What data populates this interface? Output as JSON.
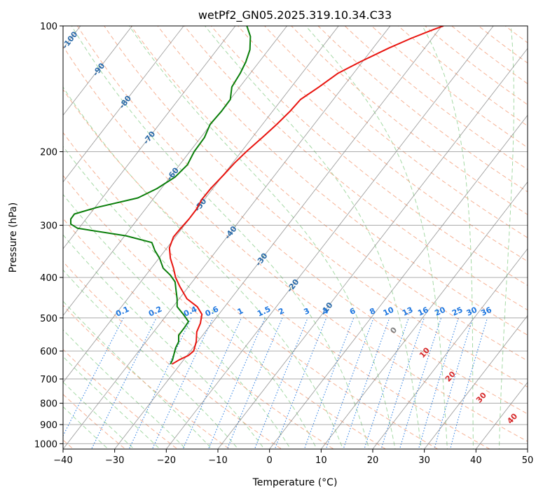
{
  "chart_data": {
    "type": "line",
    "title": "wetPf2_GN05.2025.319.10.34.C33",
    "xlabel": "Temperature (°C)",
    "ylabel": "Pressure (hPa)",
    "xlim": [
      -40,
      50
    ],
    "ylim_pressure": [
      1030,
      100
    ],
    "y_scale": "log",
    "x_ticks": [
      -40,
      -30,
      -20,
      -10,
      0,
      10,
      20,
      30,
      40,
      50
    ],
    "y_ticks": [
      100,
      200,
      300,
      400,
      500,
      600,
      700,
      800,
      900,
      1000
    ],
    "grid": true,
    "skew": true,
    "isotherm_labels": [
      -100,
      -90,
      -80,
      -70,
      -60,
      -50,
      -40,
      -30,
      -20,
      -10
    ],
    "mixing_ratio_labels": [
      "0.1",
      "0.2",
      "0.4",
      "0.6",
      "1",
      "1.5",
      "2",
      "3",
      "4",
      "6",
      "8",
      "10",
      "13",
      "16",
      "20",
      "25",
      "30",
      "36"
    ],
    "adiabat_labels": [
      "0",
      "10",
      "20",
      "30",
      "40"
    ],
    "colors": {
      "temperature": "#e8140f",
      "dewpoint": "#0a7e0a",
      "isotherm": "#808080",
      "dry_adiabat": "#f4a582",
      "moist_adiabat": "#8fcf8f",
      "mixing_ratio": "#1f77e0",
      "isotherm_label": "#2a6aa8",
      "adiabat_label": "#d62728",
      "zero_label": "#7f7f7f"
    },
    "series": [
      {
        "name": "",
        "kind": "temperature",
        "points": [
          [
            -18.9,
            645
          ],
          [
            -17.5,
            630
          ],
          [
            -15.7,
            615
          ],
          [
            -14.7,
            600
          ],
          [
            -14.2,
            570
          ],
          [
            -14.1,
            540
          ],
          [
            -13.4,
            515
          ],
          [
            -13.1,
            490
          ],
          [
            -14.0,
            470
          ],
          [
            -16.0,
            450
          ],
          [
            -17.4,
            420
          ],
          [
            -18.2,
            400
          ],
          [
            -18.6,
            380
          ],
          [
            -19.2,
            360
          ],
          [
            -19.4,
            340
          ],
          [
            -18.6,
            320
          ],
          [
            -17.2,
            305
          ],
          [
            -15.6,
            290
          ],
          [
            -14.2,
            275
          ],
          [
            -13.1,
            260
          ],
          [
            -11.4,
            245
          ],
          [
            -9.0,
            228
          ],
          [
            -6.8,
            213
          ],
          [
            -4.5,
            200
          ],
          [
            -1.4,
            185
          ],
          [
            1.4,
            172
          ],
          [
            4.0,
            160
          ],
          [
            6.0,
            150
          ],
          [
            9.6,
            140
          ],
          [
            13.2,
            130
          ],
          [
            17.5,
            122
          ],
          [
            23.1,
            113
          ],
          [
            27.5,
            107
          ],
          [
            31.8,
            102
          ],
          [
            33.7,
            100
          ]
        ]
      },
      {
        "name": "",
        "kind": "dewpoint",
        "points": [
          [
            -19.2,
            645
          ],
          [
            -18.8,
            630
          ],
          [
            -18.5,
            610
          ],
          [
            -18.2,
            590
          ],
          [
            -17.6,
            570
          ],
          [
            -17.6,
            550
          ],
          [
            -16.6,
            530
          ],
          [
            -15.7,
            510
          ],
          [
            -16.7,
            490
          ],
          [
            -17.9,
            470
          ],
          [
            -17.9,
            450
          ],
          [
            -18.1,
            430
          ],
          [
            -18.3,
            410
          ],
          [
            -19.2,
            395
          ],
          [
            -20.6,
            380
          ],
          [
            -21.3,
            360
          ],
          [
            -22.2,
            345
          ],
          [
            -22.8,
            330
          ],
          [
            -27.8,
            318
          ],
          [
            -37.2,
            305
          ],
          [
            -38.5,
            298
          ],
          [
            -38.5,
            290
          ],
          [
            -37.8,
            282
          ],
          [
            -33.5,
            272
          ],
          [
            -25.5,
            258
          ],
          [
            -21.8,
            245
          ],
          [
            -18.3,
            230
          ],
          [
            -15.9,
            215
          ],
          [
            -14.6,
            200
          ],
          [
            -12.6,
            185
          ],
          [
            -11.5,
            172
          ],
          [
            -9.3,
            160
          ],
          [
            -7.6,
            150
          ],
          [
            -7.3,
            140
          ],
          [
            -5.7,
            130
          ],
          [
            -4.6,
            122
          ],
          [
            -3.8,
            114
          ],
          [
            -3.7,
            106
          ],
          [
            -4.4,
            100
          ]
        ]
      }
    ]
  }
}
